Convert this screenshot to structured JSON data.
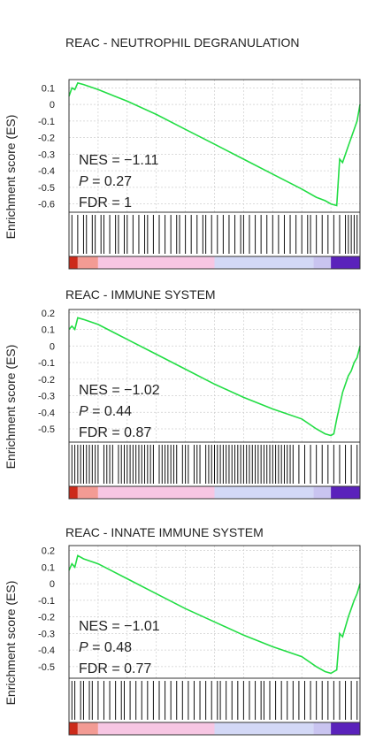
{
  "colors": {
    "curve": "#22dd44",
    "ranks": [
      "#cc2a1a",
      "#f39b94",
      "#f7c6e3",
      "#d3d8f6",
      "#c9c4f0",
      "#5a22bb"
    ]
  },
  "chart_data": [
    {
      "type": "line",
      "title": "REAC - NEUTROPHIL DEGRANULATION",
      "ylabel": "Enrichment score (ES)",
      "ylim": [
        -0.65,
        0.15
      ],
      "yticks": [
        "0.1",
        "0",
        "-0.1",
        "-0.2",
        "-0.3",
        "-0.4",
        "-0.5",
        "-0.6"
      ],
      "ytick_values": [
        0.1,
        0,
        -0.1,
        -0.2,
        -0.3,
        -0.4,
        -0.5,
        -0.6
      ],
      "stats": {
        "nes": "NES = −1.11",
        "p_label": "P",
        "p_value": " = 0.27",
        "fdr": "FDR = 1"
      },
      "series": [
        {
          "x": [
            0,
            0.01,
            0.02,
            0.03,
            0.05,
            0.1,
            0.2,
            0.3,
            0.4,
            0.5,
            0.6,
            0.7,
            0.8,
            0.85,
            0.88,
            0.9,
            0.92,
            0.93,
            0.94,
            0.96,
            0.97,
            0.98,
            0.99,
            1.0
          ],
          "y": [
            0.05,
            0.1,
            0.09,
            0.13,
            0.12,
            0.09,
            0.02,
            -0.06,
            -0.15,
            -0.24,
            -0.33,
            -0.42,
            -0.51,
            -0.56,
            -0.58,
            -0.6,
            -0.61,
            -0.33,
            -0.35,
            -0.25,
            -0.2,
            -0.15,
            -0.1,
            0.0
          ]
        }
      ],
      "hits": [
        0.01,
        0.03,
        0.05,
        0.06,
        0.08,
        0.09,
        0.11,
        0.12,
        0.14,
        0.16,
        0.17,
        0.19,
        0.2,
        0.22,
        0.24,
        0.26,
        0.27,
        0.29,
        0.31,
        0.33,
        0.35,
        0.37,
        0.38,
        0.4,
        0.42,
        0.44,
        0.46,
        0.47,
        0.49,
        0.51,
        0.53,
        0.55,
        0.57,
        0.59,
        0.6,
        0.62,
        0.64,
        0.66,
        0.68,
        0.7,
        0.72,
        0.74,
        0.76,
        0.78,
        0.8,
        0.82,
        0.83,
        0.85,
        0.87,
        0.89,
        0.91,
        0.93,
        0.95,
        0.96,
        0.97,
        0.98,
        0.99
      ],
      "rank_bar": [
        0.0,
        0.03,
        0.1,
        0.5,
        0.84,
        0.9,
        1.0
      ]
    },
    {
      "type": "line",
      "title": "REAC - IMMUNE SYSTEM",
      "ylabel": "Enrichment score (ES)",
      "ylim": [
        -0.58,
        0.22
      ],
      "yticks": [
        "0.2",
        "0.1",
        "0",
        "-0.1",
        "-0.2",
        "-0.3",
        "-0.4",
        "-0.5"
      ],
      "ytick_values": [
        0.2,
        0.1,
        0,
        -0.1,
        -0.2,
        -0.3,
        -0.4,
        -0.5
      ],
      "stats": {
        "nes": "NES = −1.02",
        "p_label": "P",
        "p_value": " = 0.44",
        "fdr": "FDR = 0.87"
      },
      "series": [
        {
          "x": [
            0,
            0.01,
            0.02,
            0.03,
            0.05,
            0.1,
            0.2,
            0.3,
            0.4,
            0.5,
            0.6,
            0.7,
            0.8,
            0.85,
            0.88,
            0.9,
            0.91,
            0.92,
            0.94,
            0.96,
            0.97,
            0.98,
            0.99,
            1.0
          ],
          "y": [
            0.1,
            0.12,
            0.1,
            0.17,
            0.16,
            0.13,
            0.04,
            -0.05,
            -0.14,
            -0.23,
            -0.31,
            -0.38,
            -0.44,
            -0.5,
            -0.53,
            -0.54,
            -0.53,
            -0.44,
            -0.28,
            -0.18,
            -0.15,
            -0.1,
            -0.07,
            0.0
          ]
        }
      ],
      "hits": [
        0.01,
        0.02,
        0.03,
        0.04,
        0.05,
        0.06,
        0.07,
        0.08,
        0.09,
        0.1,
        0.12,
        0.13,
        0.14,
        0.15,
        0.17,
        0.18,
        0.19,
        0.2,
        0.21,
        0.22,
        0.23,
        0.24,
        0.25,
        0.26,
        0.27,
        0.28,
        0.29,
        0.31,
        0.32,
        0.33,
        0.34,
        0.35,
        0.36,
        0.37,
        0.39,
        0.4,
        0.41,
        0.43,
        0.44,
        0.45,
        0.47,
        0.48,
        0.49,
        0.5,
        0.51,
        0.52,
        0.53,
        0.54,
        0.55,
        0.56,
        0.57,
        0.58,
        0.59,
        0.6,
        0.61,
        0.62,
        0.63,
        0.64,
        0.65,
        0.66,
        0.67,
        0.68,
        0.69,
        0.7,
        0.71,
        0.72,
        0.73,
        0.74,
        0.75,
        0.76,
        0.77,
        0.79,
        0.81,
        0.83,
        0.85,
        0.87,
        0.89,
        0.91,
        0.93,
        0.95,
        0.97,
        0.99
      ],
      "rank_bar": [
        0.0,
        0.03,
        0.1,
        0.5,
        0.84,
        0.9,
        1.0
      ]
    },
    {
      "type": "line",
      "title": "REAC - INNATE IMMUNE SYSTEM",
      "ylabel": "Enrichment score (ES)",
      "ylim": [
        -0.57,
        0.23
      ],
      "yticks": [
        "0.2",
        "0.1",
        "0",
        "-0.1",
        "-0.2",
        "-0.3",
        "-0.4",
        "-0.5"
      ],
      "ytick_values": [
        0.2,
        0.1,
        0,
        -0.1,
        -0.2,
        -0.3,
        -0.4,
        -0.5
      ],
      "stats": {
        "nes": "NES = −1.01",
        "p_label": "P",
        "p_value": " = 0.48",
        "fdr": "FDR = 0.77"
      },
      "series": [
        {
          "x": [
            0,
            0.01,
            0.02,
            0.03,
            0.05,
            0.1,
            0.2,
            0.3,
            0.4,
            0.5,
            0.6,
            0.7,
            0.8,
            0.85,
            0.88,
            0.9,
            0.92,
            0.93,
            0.94,
            0.96,
            0.97,
            0.98,
            0.99,
            1.0
          ],
          "y": [
            0.08,
            0.12,
            0.1,
            0.17,
            0.15,
            0.12,
            0.03,
            -0.06,
            -0.15,
            -0.23,
            -0.31,
            -0.38,
            -0.44,
            -0.5,
            -0.53,
            -0.54,
            -0.52,
            -0.3,
            -0.32,
            -0.2,
            -0.15,
            -0.1,
            -0.06,
            0.0
          ]
        }
      ],
      "hits": [
        0.01,
        0.02,
        0.04,
        0.05,
        0.07,
        0.08,
        0.1,
        0.12,
        0.14,
        0.16,
        0.18,
        0.19,
        0.21,
        0.23,
        0.25,
        0.27,
        0.29,
        0.31,
        0.33,
        0.35,
        0.37,
        0.39,
        0.41,
        0.43,
        0.45,
        0.47,
        0.49,
        0.51,
        0.52,
        0.54,
        0.56,
        0.58,
        0.6,
        0.62,
        0.64,
        0.66,
        0.67,
        0.69,
        0.71,
        0.73,
        0.75,
        0.77,
        0.79,
        0.81,
        0.83,
        0.85,
        0.87,
        0.89,
        0.91,
        0.93,
        0.95,
        0.97,
        0.99
      ],
      "rank_bar": [
        0.0,
        0.03,
        0.1,
        0.5,
        0.84,
        0.9,
        1.0
      ]
    }
  ]
}
